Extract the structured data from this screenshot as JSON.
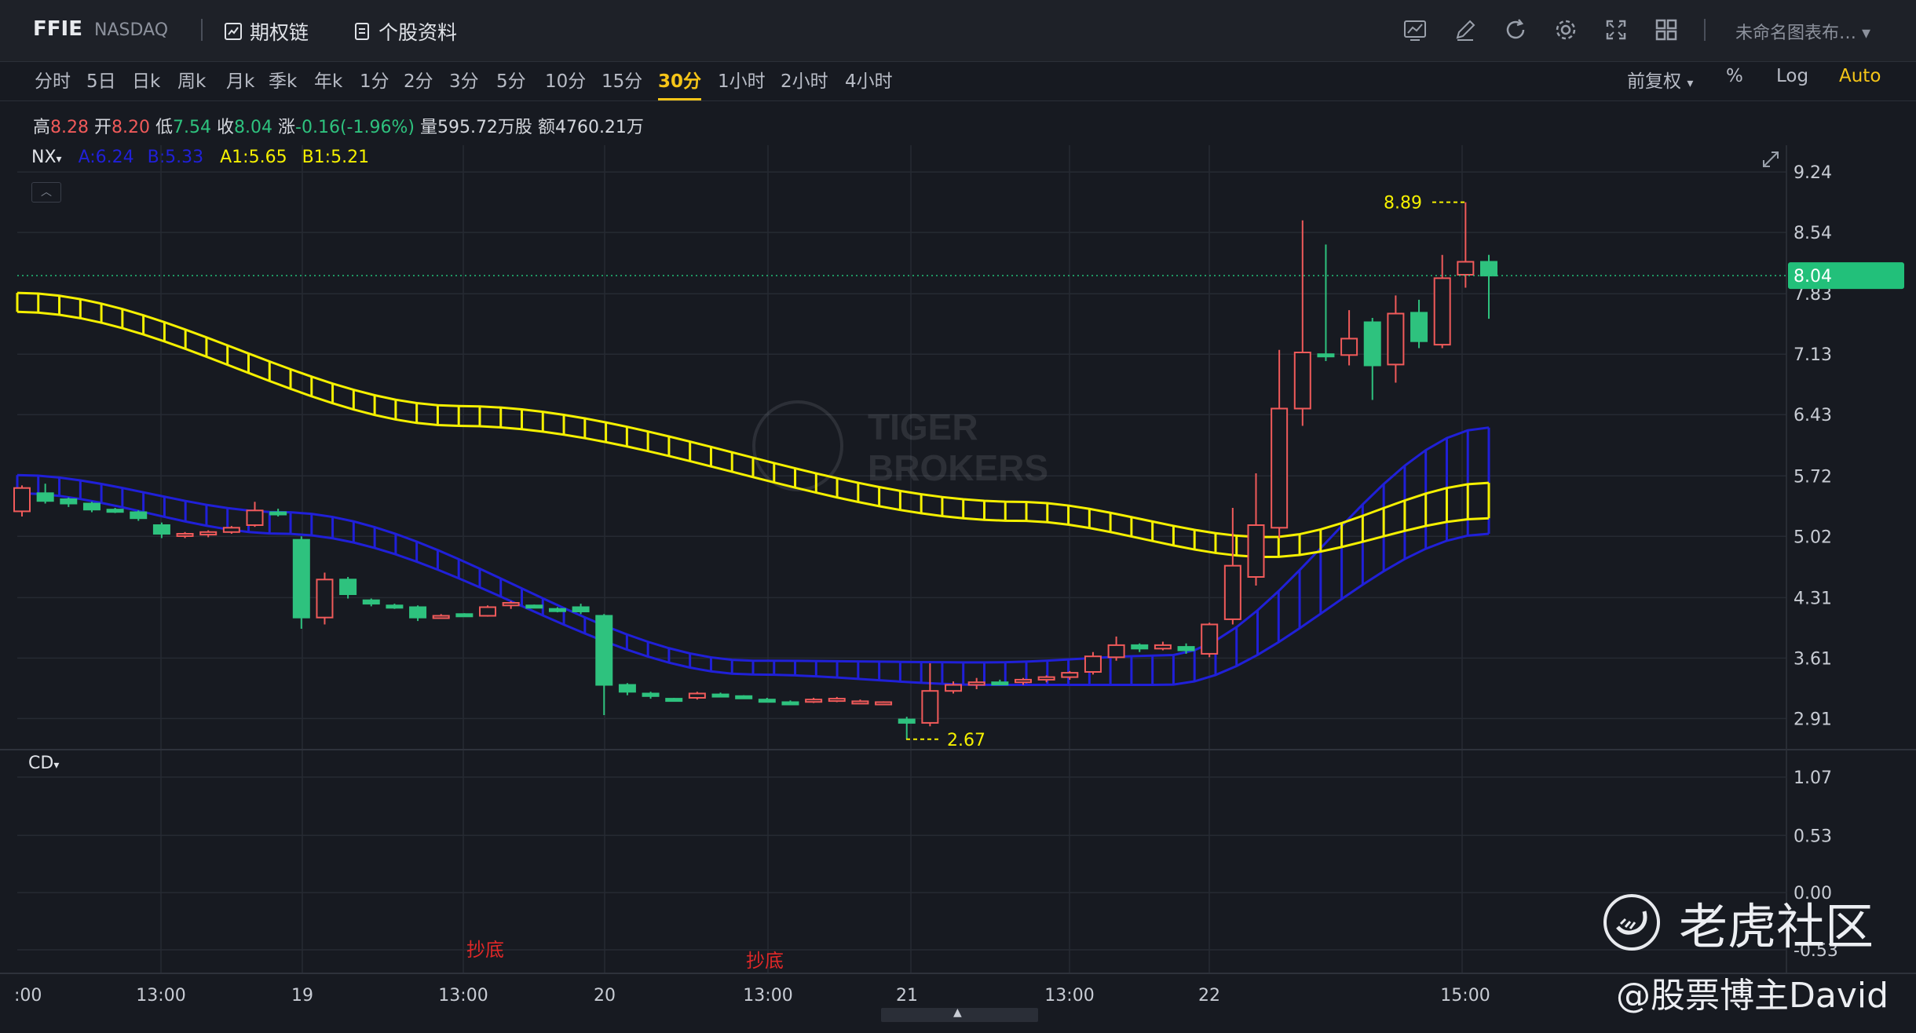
{
  "header": {
    "symbol": "FFIE",
    "exchange": "NASDAQ",
    "links": [
      "期权链",
      "个股资料"
    ],
    "chart_name": "未命名图表布…"
  },
  "timeframes": [
    "分时",
    "5日",
    "日k",
    "周k",
    "月k",
    "季k",
    "年k",
    "1分",
    "2分",
    "3分",
    "5分",
    "10分",
    "15分",
    "30分",
    "1小时",
    "2小时",
    "4小时"
  ],
  "active_timeframe": "30分",
  "right_tools": {
    "adjust": "前复权",
    "percent": "%",
    "log": "Log",
    "auto": "Auto"
  },
  "quote": {
    "high_label": "高",
    "high": "8.28",
    "open_label": "开",
    "open": "8.20",
    "low_label": "低",
    "low": "7.54",
    "close_label": "收",
    "close": "8.04",
    "change_label": "涨",
    "change": "-0.16(-1.96%)",
    "volume_label": "量",
    "volume": "595.72万股",
    "amount_label": "额",
    "amount": "4760.21万"
  },
  "indicator_main": {
    "name": "NX",
    "a": "A:6.24",
    "b": "B:5.33",
    "a1": "A1:5.65",
    "b1": "B1:5.21"
  },
  "indicator_sub": {
    "name": "CD"
  },
  "price_axis": [
    "9.24",
    "8.54",
    "7.83",
    "7.13",
    "6.43",
    "5.72",
    "5.02",
    "4.31",
    "3.61",
    "2.91"
  ],
  "sub_axis": [
    "1.07",
    "0.53",
    "0.00",
    "-0.53"
  ],
  "current_price": "8.04",
  "time_axis": [
    ":00",
    "13:00",
    "19",
    "13:00",
    "20",
    "13:00",
    "21",
    "13:00",
    "22",
    "15:00"
  ],
  "annotations": {
    "high_marker": "8.89",
    "low_marker": "2.67",
    "signal_1": "抄底",
    "signal_2": "抄底"
  },
  "watermark": {
    "brand_line1": "TIGER",
    "brand_line2": "BROKERS",
    "community": "老虎社区",
    "author": "@股票博主David"
  },
  "colors": {
    "up": "#f05a5a",
    "down": "#2ec27e",
    "yellow_band": "#f5f000",
    "blue_band": "#2020d8",
    "accent": "#f5c518",
    "price_tag": "#22c07a"
  },
  "chart_data": {
    "type": "candlestick",
    "price_range": [
      2.55,
      9.55
    ],
    "candles": [
      [
        5.31,
        5.58,
        5.25,
        5.61
      ],
      [
        5.52,
        5.43,
        5.4,
        5.63
      ],
      [
        5.45,
        5.4,
        5.36,
        5.47
      ],
      [
        5.4,
        5.33,
        5.3,
        5.42
      ],
      [
        5.33,
        5.31,
        5.29,
        5.35
      ],
      [
        5.3,
        5.23,
        5.2,
        5.32
      ],
      [
        5.15,
        5.05,
        5.0,
        5.18
      ],
      [
        5.03,
        5.05,
        5.0,
        5.07
      ],
      [
        5.04,
        5.07,
        5.01,
        5.09
      ],
      [
        5.07,
        5.12,
        5.05,
        5.14
      ],
      [
        5.15,
        5.32,
        5.13,
        5.42
      ],
      [
        5.3,
        5.28,
        5.25,
        5.34
      ],
      [
        4.98,
        4.08,
        3.95,
        5.02
      ],
      [
        4.08,
        4.52,
        4.0,
        4.6
      ],
      [
        4.52,
        4.35,
        4.3,
        4.55
      ],
      [
        4.28,
        4.24,
        4.21,
        4.3
      ],
      [
        4.22,
        4.2,
        4.18,
        4.24
      ],
      [
        4.2,
        4.08,
        4.04,
        4.22
      ],
      [
        4.1,
        4.1,
        4.07,
        4.12
      ],
      [
        4.12,
        4.11,
        4.09,
        4.13
      ],
      [
        4.1,
        4.2,
        4.09,
        4.22
      ],
      [
        4.22,
        4.25,
        4.18,
        4.27
      ],
      [
        4.22,
        4.21,
        4.19,
        4.23
      ],
      [
        4.18,
        4.17,
        4.14,
        4.2
      ],
      [
        4.2,
        4.15,
        4.12,
        4.24
      ],
      [
        4.1,
        3.3,
        2.95,
        4.12
      ],
      [
        3.3,
        3.22,
        3.18,
        3.32
      ],
      [
        3.2,
        3.17,
        3.14,
        3.22
      ],
      [
        3.14,
        3.13,
        3.11,
        3.15
      ],
      [
        3.15,
        3.2,
        3.13,
        3.22
      ],
      [
        3.19,
        3.18,
        3.16,
        3.21
      ],
      [
        3.17,
        3.16,
        3.14,
        3.18
      ],
      [
        3.13,
        3.12,
        3.1,
        3.15
      ],
      [
        3.1,
        3.09,
        3.07,
        3.12
      ],
      [
        3.11,
        3.13,
        3.09,
        3.15
      ],
      [
        3.12,
        3.14,
        3.1,
        3.16
      ],
      [
        3.11,
        3.11,
        3.09,
        3.13
      ],
      [
        3.1,
        3.1,
        3.08,
        3.11
      ],
      [
        2.9,
        2.86,
        2.67,
        2.93
      ],
      [
        2.86,
        3.23,
        2.82,
        3.55
      ],
      [
        3.23,
        3.3,
        3.2,
        3.34
      ],
      [
        3.3,
        3.33,
        3.25,
        3.38
      ],
      [
        3.33,
        3.32,
        3.3,
        3.36
      ],
      [
        3.33,
        3.36,
        3.3,
        3.38
      ],
      [
        3.36,
        3.39,
        3.33,
        3.41
      ],
      [
        3.39,
        3.44,
        3.36,
        3.46
      ],
      [
        3.45,
        3.63,
        3.42,
        3.68
      ],
      [
        3.62,
        3.76,
        3.58,
        3.86
      ],
      [
        3.76,
        3.72,
        3.68,
        3.78
      ],
      [
        3.72,
        3.76,
        3.7,
        3.8
      ],
      [
        3.74,
        3.7,
        3.66,
        3.78
      ],
      [
        3.66,
        4.0,
        3.62,
        4.02
      ],
      [
        4.06,
        4.68,
        4.0,
        5.35
      ],
      [
        4.55,
        5.15,
        4.45,
        5.75
      ],
      [
        5.12,
        6.5,
        5.0,
        7.18
      ],
      [
        6.5,
        7.15,
        6.3,
        8.68
      ],
      [
        7.13,
        7.11,
        7.05,
        8.4
      ],
      [
        7.12,
        7.31,
        7.0,
        7.64
      ],
      [
        7.5,
        7.0,
        6.6,
        7.55
      ],
      [
        7.01,
        7.6,
        6.8,
        7.81
      ],
      [
        7.61,
        7.28,
        7.2,
        7.76
      ],
      [
        7.24,
        8.01,
        7.2,
        8.28
      ],
      [
        8.05,
        8.2,
        7.9,
        8.89
      ],
      [
        8.2,
        8.04,
        7.54,
        8.28
      ]
    ],
    "band_upper": {
      "yellow_top": [
        7.84,
        6.53,
        5.42,
        5.01,
        5.64
      ],
      "yellow_bottom": [
        7.62,
        6.3,
        5.2,
        4.78,
        5.23
      ]
    }
  }
}
